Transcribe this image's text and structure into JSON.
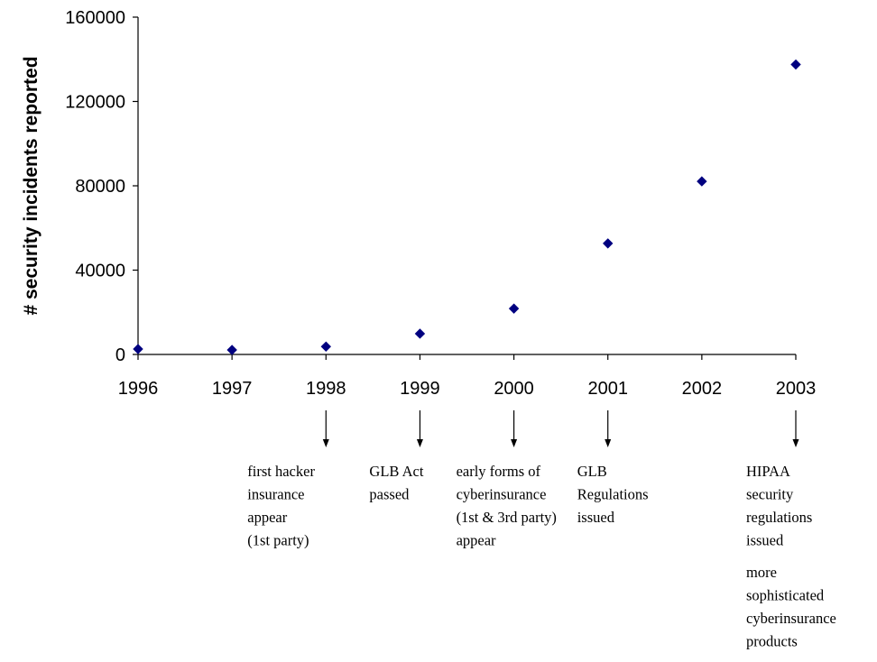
{
  "chart_data": {
    "type": "scatter",
    "title": "",
    "xlabel": "",
    "ylabel": "# security incidents reported",
    "x": [
      "1996",
      "1997",
      "1998",
      "1999",
      "2000",
      "2001",
      "2002",
      "2003"
    ],
    "series": [
      {
        "values": [
          2573,
          2134,
          3734,
          9859,
          21756,
          52658,
          82094,
          137529
        ],
        "color": "#000080",
        "marker": "diamond"
      }
    ],
    "ylim": [
      0,
      160000
    ],
    "yticks": [
      0,
      40000,
      80000,
      120000,
      160000
    ],
    "grid": false,
    "annotations": [
      {
        "x": "1998",
        "lines": [
          "first hacker",
          "insurance",
          "appear",
          "(1st party)"
        ]
      },
      {
        "x": "1999",
        "lines": [
          "GLB Act",
          "passed"
        ]
      },
      {
        "x": "2000",
        "lines": [
          "early forms of",
          "cyberinsurance",
          "(1st & 3rd party)",
          "appear"
        ]
      },
      {
        "x": "2001",
        "lines": [
          "GLB",
          "Regulations",
          "issued"
        ]
      },
      {
        "x": "2003",
        "lines": [
          "HIPAA",
          "security",
          "regulations",
          "issued"
        ],
        "extra_lines": [
          "more",
          "sophisticated",
          "cyberinsurance",
          "products"
        ]
      }
    ]
  }
}
